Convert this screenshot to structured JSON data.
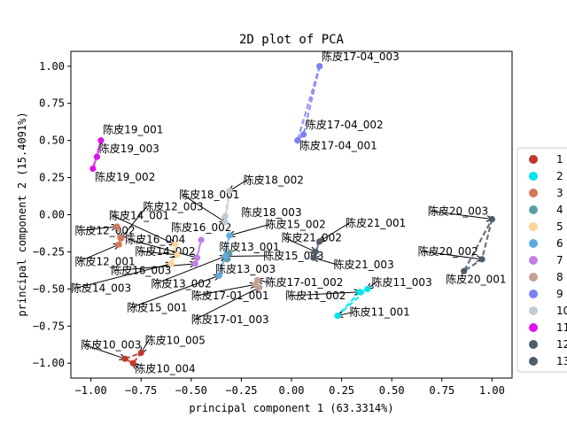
{
  "chart_data": {
    "type": "scatter",
    "title": "2D plot of PCA",
    "xlabel": "principal component 1 (63.3314%)",
    "ylabel": "principal component 2 (15.4091%)",
    "xlim": [
      -1.1,
      1.1
    ],
    "ylim": [
      -1.1,
      1.1
    ],
    "xticks": [
      -1.0,
      -0.75,
      -0.5,
      -0.25,
      0.0,
      0.25,
      0.5,
      0.75,
      1.0
    ],
    "xtick_labels": [
      "−1.00",
      "−0.75",
      "−0.50",
      "−0.25",
      "0.00",
      "0.25",
      "0.50",
      "0.75",
      "1.00"
    ],
    "yticks": [
      1.0,
      0.75,
      0.5,
      0.25,
      0.0,
      -0.25,
      -0.5,
      -0.75,
      -1.0
    ],
    "ytick_labels": [
      "1.00",
      "0.75",
      "0.50",
      "0.25",
      "0.00",
      "−0.25",
      "−0.50",
      "−0.75",
      "−1.00"
    ],
    "grid": false,
    "legend_position": "right",
    "series": [
      {
        "name": "1",
        "color": "#c0392b",
        "points": [
          {
            "x": -0.83,
            "y": -0.97,
            "label": "陈皮10_003"
          },
          {
            "x": -0.75,
            "y": -0.93,
            "label": "陈皮10_005"
          },
          {
            "x": -0.79,
            "y": -1.0,
            "label": "陈皮10_004"
          }
        ]
      },
      {
        "name": "2",
        "color": "#00e5ee",
        "points": [
          {
            "x": 0.38,
            "y": -0.5,
            "label": "陈皮11_003"
          },
          {
            "x": 0.34,
            "y": -0.52,
            "label": "陈皮11_002"
          },
          {
            "x": 0.23,
            "y": -0.68,
            "label": "陈皮11_001"
          }
        ]
      },
      {
        "name": "3",
        "color": "#d4785a",
        "points": [
          {
            "x": -0.87,
            "y": -0.08,
            "label": "陈皮12_002"
          },
          {
            "x": -0.85,
            "y": -0.16,
            "label": "陈皮12_003"
          },
          {
            "x": -0.86,
            "y": -0.2,
            "label": "陈皮12_001"
          }
        ]
      },
      {
        "name": "4",
        "color": "#5f9ea0",
        "points": [
          {
            "x": -0.31,
            "y": -0.26,
            "label": "陈皮13_001"
          },
          {
            "x": -0.32,
            "y": -0.3,
            "label": "陈皮13_003"
          },
          {
            "x": -0.33,
            "y": -0.28,
            "label": "陈皮13_002"
          }
        ]
      },
      {
        "name": "5",
        "color": "#ffd39b",
        "points": [
          {
            "x": -0.58,
            "y": -0.2,
            "label": "陈皮14_001"
          },
          {
            "x": -0.57,
            "y": -0.27,
            "label": "陈皮14_002"
          },
          {
            "x": -0.6,
            "y": -0.33,
            "label": "陈皮14_003"
          }
        ]
      },
      {
        "name": "6",
        "color": "#5dade2",
        "points": [
          {
            "x": -0.31,
            "y": -0.14,
            "label": "陈皮15_002"
          },
          {
            "x": -0.33,
            "y": -0.28,
            "label": "陈皮15_003"
          },
          {
            "x": -0.36,
            "y": -0.41,
            "label": "陈皮15_001"
          }
        ]
      },
      {
        "name": "7",
        "color": "#c27ee8",
        "points": [
          {
            "x": -0.45,
            "y": -0.17,
            "label": "陈皮16_002"
          },
          {
            "x": -0.47,
            "y": -0.29,
            "label": "陈皮16_004"
          },
          {
            "x": -0.48,
            "y": -0.33,
            "label": "陈皮16_003"
          }
        ]
      },
      {
        "name": "8",
        "color": "#c4a296",
        "points": [
          {
            "x": -0.17,
            "y": -0.44,
            "label": "陈皮17_01_002"
          },
          {
            "x": -0.18,
            "y": -0.47,
            "label": "陈皮17_01_001"
          },
          {
            "x": -0.16,
            "y": -0.49,
            "label": "陈皮17_01_003"
          }
        ]
      },
      {
        "name": "9",
        "color": "#7b7ff5",
        "points": [
          {
            "x": 0.14,
            "y": 1.0,
            "label": "陈皮17-04_003"
          },
          {
            "x": 0.06,
            "y": 0.54,
            "label": "陈皮17-04_002"
          },
          {
            "x": 0.03,
            "y": 0.5,
            "label": "陈皮17-04_001"
          }
        ]
      },
      {
        "name": "10",
        "color": "#c0cbd3",
        "points": [
          {
            "x": -0.33,
            "y": -0.01,
            "label": "陈皮18_003"
          },
          {
            "x": -0.31,
            "y": 0.16,
            "label": "陈皮18_002"
          },
          {
            "x": -0.33,
            "y": -0.05,
            "label": "陈皮18_001"
          }
        ]
      },
      {
        "name": "11",
        "color": "#dd11ee",
        "points": [
          {
            "x": -0.95,
            "y": 0.5,
            "label": "陈皮19_001"
          },
          {
            "x": -0.97,
            "y": 0.39,
            "label": "陈皮19_003"
          },
          {
            "x": -0.99,
            "y": 0.31,
            "label": "陈皮19_002"
          }
        ]
      },
      {
        "name": "12",
        "color": "#4f5d6b",
        "points": [
          {
            "x": 1.0,
            "y": -0.03,
            "label": "陈皮20_003"
          },
          {
            "x": 0.95,
            "y": -0.3,
            "label": "陈皮20_002"
          },
          {
            "x": 0.86,
            "y": -0.38,
            "label": "陈皮20_001"
          }
        ]
      },
      {
        "name": "13",
        "color": "#4f5d6b",
        "points": [
          {
            "x": 0.14,
            "y": -0.18,
            "label": "陈皮21_001"
          },
          {
            "x": 0.12,
            "y": -0.25,
            "label": "陈皮21_002"
          },
          {
            "x": 0.11,
            "y": -0.29,
            "label": "陈皮21_003"
          }
        ]
      }
    ],
    "annotations": [
      {
        "text": "陈皮17-04_003",
        "x": 0.14,
        "y": 1.0,
        "tx": 0.15,
        "ty": 1.04,
        "arrow": false
      },
      {
        "text": "陈皮17-04_002",
        "x": 0.06,
        "y": 0.54,
        "tx": 0.07,
        "ty": 0.58,
        "arrow": false
      },
      {
        "text": "陈皮17-04_001",
        "x": 0.03,
        "y": 0.5,
        "tx": 0.04,
        "ty": 0.44,
        "arrow": false
      },
      {
        "text": "陈皮19_001",
        "x": -0.95,
        "y": 0.5,
        "tx": -0.94,
        "ty": 0.55,
        "arrow": false
      },
      {
        "text": "陈皮19_003",
        "x": -0.97,
        "y": 0.39,
        "tx": -0.96,
        "ty": 0.42,
        "arrow": false
      },
      {
        "text": "陈皮19_002",
        "x": -0.99,
        "y": 0.31,
        "tx": -0.98,
        "ty": 0.23,
        "arrow": false
      },
      {
        "text": "陈皮18_002",
        "x": -0.31,
        "y": 0.16,
        "tx": -0.24,
        "ty": 0.21,
        "arrow": true
      },
      {
        "text": "陈皮18_001",
        "x": -0.33,
        "y": -0.05,
        "tx": -0.56,
        "ty": 0.11,
        "arrow": true
      },
      {
        "text": "陈皮12_003",
        "x": -0.85,
        "y": -0.16,
        "tx": -0.74,
        "ty": 0.03,
        "arrow": true
      },
      {
        "text": "陈皮18_003",
        "x": -0.33,
        "y": -0.01,
        "tx": -0.25,
        "ty": -0.01,
        "arrow": false
      },
      {
        "text": "陈皮14_001",
        "x": -0.58,
        "y": -0.2,
        "tx": -0.91,
        "ty": -0.03,
        "arrow": true
      },
      {
        "text": "陈皮16_002",
        "x": -0.45,
        "y": -0.17,
        "tx": -0.6,
        "ty": -0.11,
        "arrow": false
      },
      {
        "text": "陈皮15_002",
        "x": -0.31,
        "y": -0.14,
        "tx": -0.13,
        "ty": -0.09,
        "arrow": true
      },
      {
        "text": "陈皮12_002",
        "x": -0.87,
        "y": -0.08,
        "tx": -1.08,
        "ty": -0.13,
        "arrow": true
      },
      {
        "text": "陈皮16_004",
        "x": -0.47,
        "y": -0.29,
        "tx": -0.83,
        "ty": -0.19,
        "arrow": true
      },
      {
        "text": "陈皮21_002",
        "x": 0.12,
        "y": -0.25,
        "tx": -0.05,
        "ty": -0.18,
        "arrow": true
      },
      {
        "text": "陈皮21_001",
        "x": 0.14,
        "y": -0.18,
        "tx": 0.27,
        "ty": -0.08,
        "arrow": true
      },
      {
        "text": "陈皮13_001",
        "x": -0.31,
        "y": -0.26,
        "tx": -0.36,
        "ty": -0.24,
        "arrow": false
      },
      {
        "text": "陈皮14_002",
        "x": -0.57,
        "y": -0.27,
        "tx": -0.78,
        "ty": -0.27,
        "arrow": true
      },
      {
        "text": "陈皮15_003",
        "x": -0.33,
        "y": -0.28,
        "tx": -0.14,
        "ty": -0.3,
        "arrow": true
      },
      {
        "text": "陈皮12_001",
        "x": -0.86,
        "y": -0.2,
        "tx": -1.08,
        "ty": -0.34,
        "arrow": true
      },
      {
        "text": "陈皮21_003",
        "x": 0.11,
        "y": -0.29,
        "tx": 0.21,
        "ty": -0.36,
        "arrow": true
      },
      {
        "text": "陈皮16_003",
        "x": -0.48,
        "y": -0.33,
        "tx": -0.9,
        "ty": -0.4,
        "arrow": true
      },
      {
        "text": "陈皮13_003",
        "x": -0.32,
        "y": -0.3,
        "tx": -0.38,
        "ty": -0.39,
        "arrow": false
      },
      {
        "text": "陈皮20_003",
        "x": 1.0,
        "y": -0.03,
        "tx": 0.68,
        "ty": 0.0,
        "arrow": true
      },
      {
        "text": "陈皮20_002",
        "x": 0.95,
        "y": -0.3,
        "tx": 0.63,
        "ty": -0.27,
        "arrow": true
      },
      {
        "text": "陈皮20_001",
        "x": 0.86,
        "y": -0.38,
        "tx": 0.77,
        "ty": -0.46,
        "arrow": false
      },
      {
        "text": "陈皮14_003",
        "x": -0.6,
        "y": -0.33,
        "tx": -1.1,
        "ty": -0.52,
        "arrow": true
      },
      {
        "text": "陈皮13_002",
        "x": -0.33,
        "y": -0.28,
        "tx": -0.7,
        "ty": -0.49,
        "arrow": true
      },
      {
        "text": "陈皮17-01_002",
        "x": -0.17,
        "y": -0.44,
        "tx": -0.13,
        "ty": -0.48,
        "arrow": true
      },
      {
        "text": "陈皮11_003",
        "x": 0.38,
        "y": -0.5,
        "tx": 0.4,
        "ty": -0.48,
        "arrow": true
      },
      {
        "text": "陈皮11_002",
        "x": 0.34,
        "y": -0.52,
        "tx": -0.03,
        "ty": -0.57,
        "arrow": true
      },
      {
        "text": "陈皮17-01_001",
        "x": -0.18,
        "y": -0.47,
        "tx": -0.5,
        "ty": -0.57,
        "arrow": true
      },
      {
        "text": "陈皮15_001",
        "x": -0.36,
        "y": -0.41,
        "tx": -0.82,
        "ty": -0.65,
        "arrow": true
      },
      {
        "text": "陈皮11_001",
        "x": 0.23,
        "y": -0.68,
        "tx": 0.29,
        "ty": -0.68,
        "arrow": true
      },
      {
        "text": "陈皮17-01_003",
        "x": -0.16,
        "y": -0.49,
        "tx": -0.5,
        "ty": -0.73,
        "arrow": true
      },
      {
        "text": "陈皮10_005",
        "x": -0.75,
        "y": -0.93,
        "tx": -0.73,
        "ty": -0.87,
        "arrow": true
      },
      {
        "text": "陈皮10_003",
        "x": -0.83,
        "y": -0.97,
        "tx": -1.05,
        "ty": -0.9,
        "arrow": true
      },
      {
        "text": "陈皮10_004",
        "x": -0.79,
        "y": -1.0,
        "tx": -0.78,
        "ty": -1.06,
        "arrow": true
      }
    ]
  }
}
